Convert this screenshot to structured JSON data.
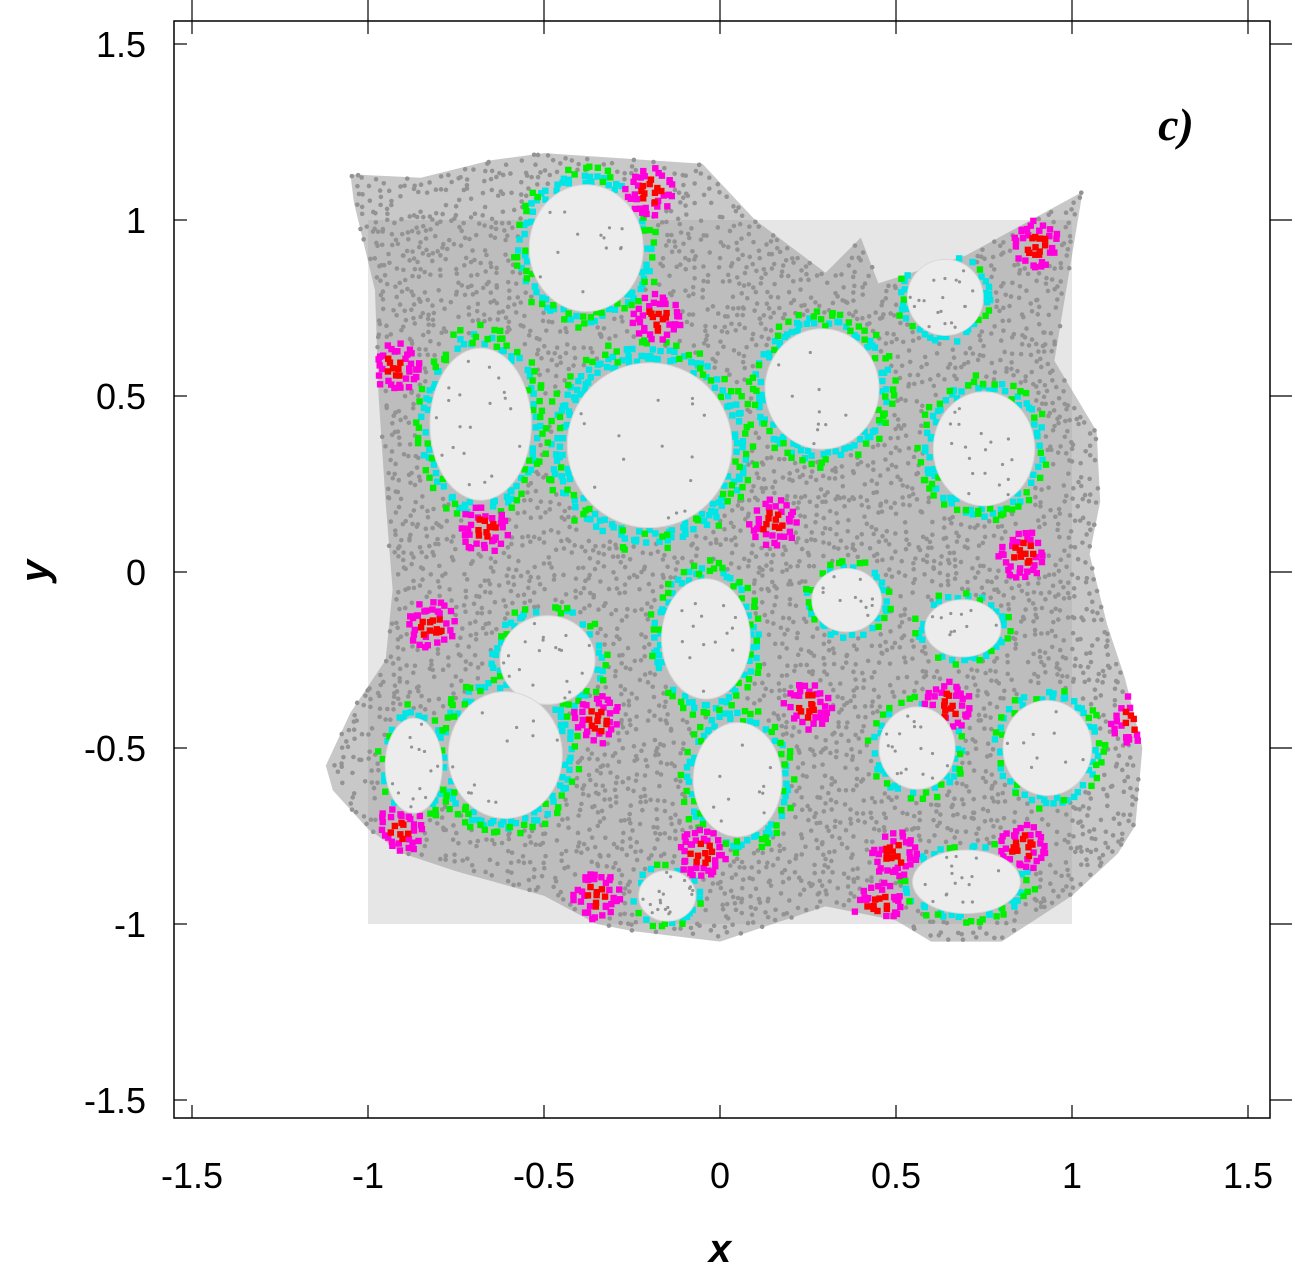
{
  "chart_data": {
    "type": "scatter",
    "panel_label": "c)",
    "xlabel": "x",
    "ylabel": "y",
    "xlim": [
      -1.55,
      1.55
    ],
    "ylim": [
      -1.55,
      1.55
    ],
    "xticks": [
      -1.5,
      -1,
      -0.5,
      0,
      0.5,
      1,
      1.5
    ],
    "yticks": [
      -1.5,
      -1,
      -0.5,
      0,
      0.5,
      1,
      1.5
    ],
    "xtick_labels": [
      "-1.5",
      "-1",
      "-0.5",
      "0",
      "0.5",
      "1",
      "1.5"
    ],
    "ytick_labels": [
      "-1.5",
      "-1",
      "-0.5",
      "0",
      "0.5",
      "1",
      "1.5"
    ],
    "grid": false,
    "reference_square": {
      "x": [
        -1,
        1
      ],
      "y": [
        -1,
        1
      ],
      "color": "#e6e6e6"
    },
    "colors": {
      "background_square": "#e6e6e6",
      "cell_fill": "#ececec",
      "points": "#939393",
      "level_1": "#00e5e5",
      "level_2": "#00f000",
      "level_3": "#ff00dc",
      "level_4": "#ff0000"
    },
    "cloud_outline": [
      [
        -1.05,
        1.13
      ],
      [
        -0.85,
        1.12
      ],
      [
        -0.65,
        1.17
      ],
      [
        -0.5,
        1.19
      ],
      [
        -0.2,
        1.17
      ],
      [
        -0.05,
        1.16
      ],
      [
        0.1,
        1.0
      ],
      [
        0.3,
        0.85
      ],
      [
        0.4,
        0.95
      ],
      [
        0.45,
        0.82
      ],
      [
        0.7,
        0.9
      ],
      [
        1.03,
        1.08
      ],
      [
        0.95,
        0.6
      ],
      [
        1.07,
        0.4
      ],
      [
        1.08,
        0.2
      ],
      [
        1.05,
        0.05
      ],
      [
        1.1,
        -0.15
      ],
      [
        1.15,
        -0.3
      ],
      [
        1.2,
        -0.5
      ],
      [
        1.18,
        -0.72
      ],
      [
        1.13,
        -0.8
      ],
      [
        1.0,
        -0.92
      ],
      [
        0.8,
        -1.05
      ],
      [
        0.6,
        -1.05
      ],
      [
        0.5,
        -0.99
      ],
      [
        0.3,
        -0.95
      ],
      [
        0.0,
        -1.05
      ],
      [
        -0.25,
        -1.02
      ],
      [
        -0.35,
        -1.0
      ],
      [
        -0.5,
        -0.92
      ],
      [
        -0.75,
        -0.85
      ],
      [
        -0.9,
        -0.8
      ],
      [
        -1.0,
        -0.73
      ],
      [
        -1.1,
        -0.62
      ],
      [
        -1.12,
        -0.55
      ],
      [
        -1.05,
        -0.4
      ],
      [
        -0.95,
        -0.25
      ],
      [
        -0.93,
        -0.05
      ],
      [
        -0.95,
        0.2
      ],
      [
        -0.97,
        0.5
      ],
      [
        -0.98,
        0.8
      ],
      [
        -1.04,
        1.05
      ]
    ],
    "voids": [
      {
        "cx": -0.38,
        "cy": 0.92,
        "rx": 0.18,
        "ry": 0.2
      },
      {
        "cx": -0.2,
        "cy": 0.36,
        "rx": 0.26,
        "ry": 0.26
      },
      {
        "cx": 0.29,
        "cy": 0.52,
        "rx": 0.18,
        "ry": 0.19
      },
      {
        "cx": 0.64,
        "cy": 0.78,
        "rx": 0.12,
        "ry": 0.12
      },
      {
        "cx": 0.75,
        "cy": 0.35,
        "rx": 0.16,
        "ry": 0.18
      },
      {
        "cx": -0.68,
        "cy": 0.42,
        "rx": 0.16,
        "ry": 0.24
      },
      {
        "cx": -0.04,
        "cy": -0.19,
        "rx": 0.14,
        "ry": 0.19
      },
      {
        "cx": 0.36,
        "cy": -0.08,
        "rx": 0.11,
        "ry": 0.1
      },
      {
        "cx": 0.69,
        "cy": -0.16,
        "rx": 0.12,
        "ry": 0.09
      },
      {
        "cx": 0.05,
        "cy": -0.59,
        "rx": 0.14,
        "ry": 0.18
      },
      {
        "cx": 0.56,
        "cy": -0.5,
        "rx": 0.12,
        "ry": 0.13
      },
      {
        "cx": 0.93,
        "cy": -0.5,
        "rx": 0.14,
        "ry": 0.15
      },
      {
        "cx": -0.49,
        "cy": -0.25,
        "rx": 0.15,
        "ry": 0.14
      },
      {
        "cx": -0.61,
        "cy": -0.52,
        "rx": 0.18,
        "ry": 0.2
      },
      {
        "cx": -0.87,
        "cy": -0.55,
        "rx": 0.09,
        "ry": 0.15
      },
      {
        "cx": 0.7,
        "cy": -0.88,
        "rx": 0.17,
        "ry": 0.1
      },
      {
        "cx": -0.15,
        "cy": -0.92,
        "rx": 0.09,
        "ry": 0.08
      }
    ],
    "hotspots": [
      {
        "x": -0.67,
        "y": 0.12,
        "level": 4
      },
      {
        "x": -0.92,
        "y": 0.58,
        "level": 4
      },
      {
        "x": -0.2,
        "y": 1.08,
        "level": 4
      },
      {
        "x": -0.18,
        "y": 0.72,
        "level": 4
      },
      {
        "x": 0.15,
        "y": 0.14,
        "level": 4
      },
      {
        "x": 0.9,
        "y": 0.93,
        "level": 4
      },
      {
        "x": 0.86,
        "y": 0.05,
        "level": 4
      },
      {
        "x": 0.25,
        "y": -0.38,
        "level": 4
      },
      {
        "x": -0.35,
        "y": -0.92,
        "level": 4
      },
      {
        "x": -0.05,
        "y": -0.8,
        "level": 4
      },
      {
        "x": -0.91,
        "y": -0.73,
        "level": 4
      },
      {
        "x": 0.5,
        "y": -0.8,
        "level": 4
      },
      {
        "x": 0.86,
        "y": -0.78,
        "level": 4
      },
      {
        "x": 0.65,
        "y": -0.38,
        "level": 4
      },
      {
        "x": 1.18,
        "y": -0.42,
        "level": 4
      },
      {
        "x": -0.82,
        "y": -0.15,
        "level": 4
      },
      {
        "x": -0.35,
        "y": -0.42,
        "level": 4
      },
      {
        "x": 0.45,
        "y": -0.95,
        "level": 4
      }
    ]
  }
}
